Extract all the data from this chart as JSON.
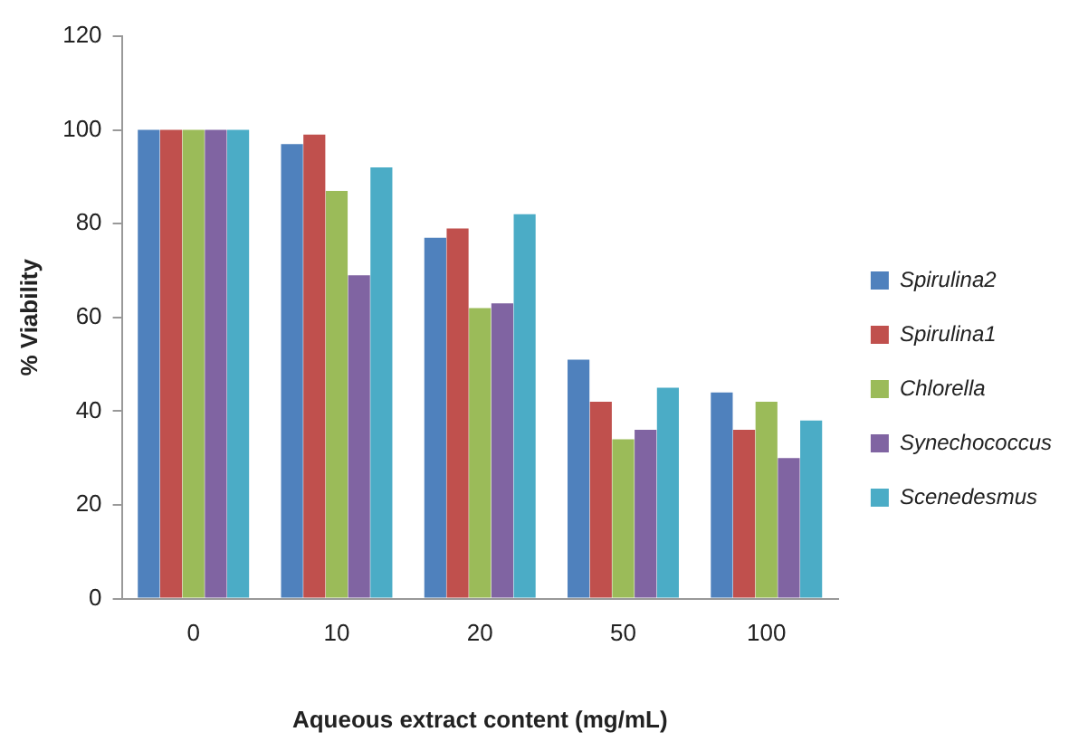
{
  "chart_data": {
    "type": "bar",
    "xlabel": "Aqueous extract content (mg/mL)",
    "ylabel": "% Viability",
    "categories": [
      "0",
      "10",
      "20",
      "50",
      "100"
    ],
    "series": [
      {
        "name": "Spirulina2",
        "color": "#4f81bd",
        "values": [
          100,
          97,
          77,
          51,
          44
        ]
      },
      {
        "name": "Spirulina1",
        "color": "#c0504d",
        "values": [
          100,
          99,
          79,
          42,
          36
        ]
      },
      {
        "name": "Chlorella",
        "color": "#9bbb59",
        "values": [
          100,
          87,
          62,
          34,
          42
        ]
      },
      {
        "name": "Synechococcus",
        "color": "#8064a2",
        "values": [
          100,
          69,
          63,
          36,
          30
        ]
      },
      {
        "name": "Scenedesmus",
        "color": "#4bacc6",
        "values": [
          100,
          92,
          82,
          45,
          38
        ]
      }
    ],
    "ylim": [
      0,
      120
    ],
    "yticks": [
      0,
      20,
      40,
      60,
      80,
      100,
      120
    ],
    "grid": false,
    "legend": "right"
  }
}
